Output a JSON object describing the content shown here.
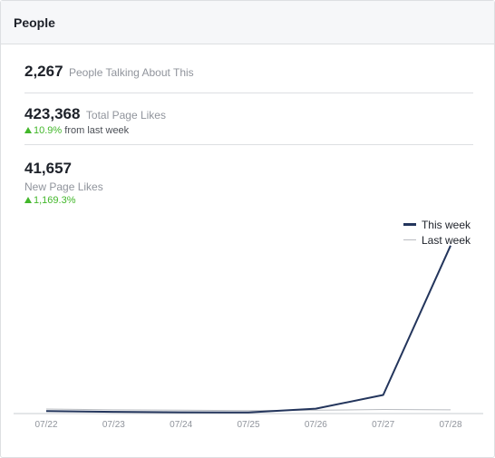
{
  "header": {
    "title": "People"
  },
  "stats": {
    "talking": {
      "value": "2,267",
      "label": "People Talking About This"
    },
    "total_likes": {
      "value": "423,368",
      "label": "Total Page Likes",
      "delta": "10.9%",
      "delta_suffix": "from last week"
    },
    "new_likes": {
      "value": "41,657",
      "label": "New Page Likes",
      "delta": "1,169.3%"
    }
  },
  "colors": {
    "this_week": "#23355c",
    "last_week": "#b9bcc1",
    "positive": "#42b72a",
    "axis": "#c9ccd1"
  },
  "chart_data": {
    "type": "line",
    "categories": [
      "07/22",
      "07/23",
      "07/24",
      "07/25",
      "07/26",
      "07/27",
      "07/28"
    ],
    "series": [
      {
        "name": "This week",
        "values": [
          400,
          200,
          100,
          50,
          1000,
          4400,
          41657
        ]
      },
      {
        "name": "Last week",
        "values": [
          900,
          700,
          600,
          500,
          600,
          800,
          700
        ]
      }
    ],
    "ylim": [
      0,
      45000
    ],
    "grid": false,
    "legend": "top-right"
  }
}
